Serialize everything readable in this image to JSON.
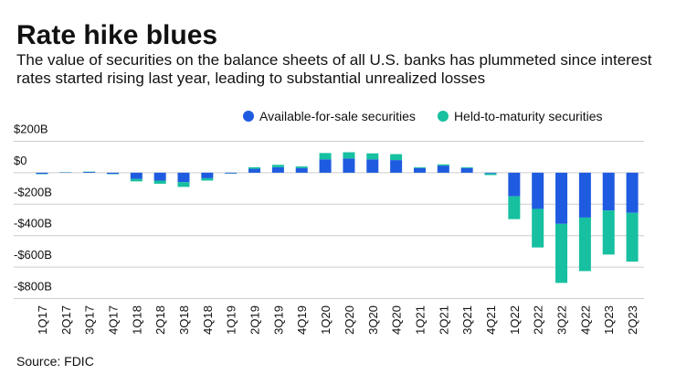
{
  "chart_data": {
    "type": "bar",
    "stacked": true,
    "title": "Rate hike blues",
    "subtitle": "The value of securities on the balance sheets of all U.S. banks has plummeted since interest rates started rising last year, leading to substantial unrealized losses",
    "source": "Source: FDIC",
    "categories": [
      "1Q17",
      "2Q17",
      "3Q17",
      "4Q17",
      "1Q18",
      "2Q18",
      "3Q18",
      "4Q18",
      "1Q19",
      "2Q19",
      "3Q19",
      "4Q19",
      "1Q20",
      "2Q20",
      "3Q20",
      "4Q20",
      "1Q21",
      "2Q21",
      "3Q21",
      "4Q21",
      "1Q22",
      "2Q22",
      "3Q22",
      "4Q22",
      "1Q23",
      "2Q23"
    ],
    "series": [
      {
        "name": "Available-for-sale securities",
        "color": "#1f5be0",
        "values": [
          -8,
          2,
          5,
          -8,
          -40,
          -50,
          -60,
          -35,
          -5,
          25,
          35,
          30,
          85,
          90,
          85,
          80,
          30,
          45,
          30,
          -5,
          -150,
          -230,
          -325,
          -285,
          -240,
          -255
        ]
      },
      {
        "name": "Held-to-maturity securities",
        "color": "#16c0a0",
        "values": [
          -2,
          1,
          2,
          -2,
          -15,
          -20,
          -30,
          -15,
          -2,
          10,
          15,
          10,
          40,
          40,
          38,
          38,
          5,
          8,
          5,
          -10,
          -145,
          -245,
          -375,
          -340,
          -280,
          -310
        ]
      }
    ],
    "ylim": [
      -820,
      220
    ],
    "yticks": [
      {
        "value": 200,
        "label": "$200B"
      },
      {
        "value": 0,
        "label": "$0"
      },
      {
        "value": -200,
        "label": "-$200B"
      },
      {
        "value": -400,
        "label": "-$400B"
      },
      {
        "value": -600,
        "label": "-$600B"
      },
      {
        "value": -800,
        "label": "-$800B"
      }
    ],
    "grid": true,
    "legend": "top-right"
  }
}
